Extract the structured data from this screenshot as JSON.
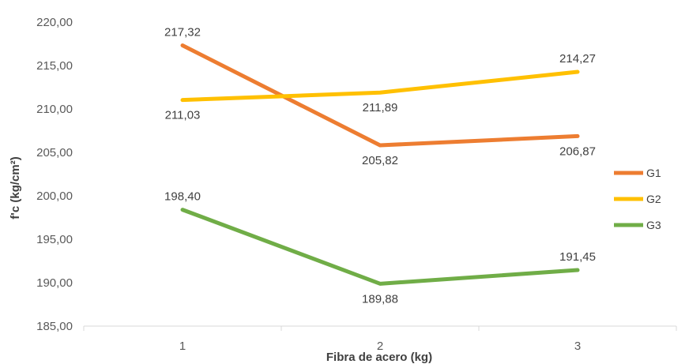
{
  "chart_data": {
    "type": "line",
    "title": "",
    "xlabel": "Fibra de acero (kg)",
    "ylabel": "f'c (kg/cm²)",
    "categories": [
      "1",
      "2",
      "3"
    ],
    "ylim": [
      185,
      220
    ],
    "yticks": [
      "185,00",
      "190,00",
      "195,00",
      "200,00",
      "205,00",
      "210,00",
      "215,00",
      "220,00"
    ],
    "grid": false,
    "legend_position": "right",
    "series": [
      {
        "name": "G1",
        "color": "#ED7D31",
        "values": [
          217.32,
          205.82,
          206.87
        ],
        "labels": [
          "217,32",
          "205,82",
          "206,87"
        ]
      },
      {
        "name": "G2",
        "color": "#FFC000",
        "values": [
          211.03,
          211.89,
          214.27
        ],
        "labels": [
          "211,03",
          "211,89",
          "214,27"
        ]
      },
      {
        "name": "G3",
        "color": "#70AD47",
        "values": [
          198.4,
          189.88,
          191.45
        ],
        "labels": [
          "198,40",
          "189,88",
          "191,45"
        ]
      }
    ]
  }
}
